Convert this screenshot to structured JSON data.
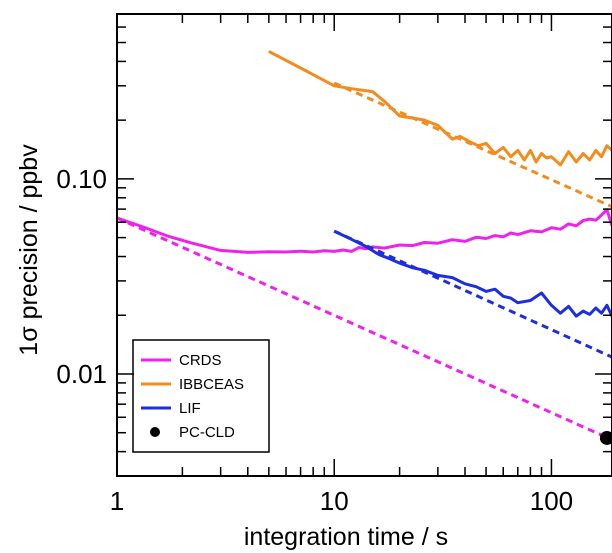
{
  "chart_data": {
    "type": "line",
    "title": "",
    "xlabel": "integration time / s",
    "ylabel": "1σ precision / ppbv",
    "xscale": "log",
    "yscale": "log",
    "xlim": [
      1,
      190
    ],
    "ylim": [
      0.003,
      0.7
    ],
    "x_ticks": [
      {
        "value": 1,
        "label": "1"
      },
      {
        "value": 10,
        "label": "10"
      },
      {
        "value": 100,
        "label": "100"
      }
    ],
    "y_ticks": [
      {
        "value": 0.01,
        "label": "0.01"
      },
      {
        "value": 0.1,
        "label": "0.10"
      }
    ],
    "grid": false,
    "legend_position": "bottom-left",
    "colors": {
      "CRDS": "#ee22ee",
      "IBBCEAS": "#f28c1e",
      "LIF": "#1c2fe0",
      "PC-CLD": "#000000"
    },
    "series": [
      {
        "name": "CRDS",
        "color": "#ee22ee",
        "measured": {
          "x": [
            1,
            1.3,
            1.7,
            2.2,
            3,
            4,
            5,
            6,
            7,
            8,
            9,
            10,
            11,
            12,
            13,
            14,
            15,
            17,
            20,
            23,
            26,
            30,
            35,
            40,
            45,
            50,
            55,
            60,
            65,
            70,
            80,
            90,
            100,
            110,
            120,
            130,
            140,
            150,
            160,
            170,
            180,
            190
          ],
          "y": [
            0.063,
            0.057,
            0.051,
            0.047,
            0.043,
            0.042,
            0.0423,
            0.0422,
            0.0426,
            0.0422,
            0.0428,
            0.0425,
            0.0432,
            0.0425,
            0.0445,
            0.0438,
            0.0448,
            0.0442,
            0.0458,
            0.0455,
            0.0472,
            0.0468,
            0.0488,
            0.0478,
            0.0502,
            0.0495,
            0.0512,
            0.0505,
            0.0528,
            0.0518,
            0.0542,
            0.0535,
            0.0562,
            0.0552,
            0.0588,
            0.0575,
            0.0612,
            0.0622,
            0.0615,
            0.0652,
            0.0695,
            0.0575
          ]
        },
        "fit": {
          "x": [
            1,
            190
          ],
          "y": [
            0.063,
            0.0046
          ]
        }
      },
      {
        "name": "IBBCEAS",
        "color": "#f28c1e",
        "measured": {
          "x": [
            5,
            7,
            10,
            12,
            15,
            17,
            20,
            23,
            26,
            30,
            35,
            38,
            42,
            46,
            50,
            55,
            60,
            65,
            70,
            75,
            80,
            85,
            90,
            95,
            100,
            110,
            120,
            130,
            140,
            150,
            160,
            170,
            180,
            190
          ],
          "y": [
            0.45,
            0.37,
            0.3,
            0.29,
            0.28,
            0.25,
            0.21,
            0.205,
            0.2,
            0.188,
            0.16,
            0.165,
            0.155,
            0.148,
            0.152,
            0.135,
            0.145,
            0.13,
            0.14,
            0.125,
            0.14,
            0.122,
            0.135,
            0.128,
            0.13,
            0.118,
            0.138,
            0.122,
            0.135,
            0.125,
            0.14,
            0.13,
            0.148,
            0.14
          ]
        },
        "fit": {
          "x": [
            10,
            190
          ],
          "y": [
            0.31,
            0.072
          ]
        }
      },
      {
        "name": "LIF",
        "color": "#1c2fe0",
        "measured": {
          "x": [
            10,
            12,
            14,
            16,
            18,
            20,
            23,
            26,
            30,
            35,
            40,
            45,
            50,
            55,
            60,
            65,
            70,
            80,
            90,
            100,
            110,
            120,
            130,
            140,
            150,
            160,
            170,
            180,
            190
          ],
          "y": [
            0.054,
            0.049,
            0.045,
            0.041,
            0.039,
            0.037,
            0.035,
            0.034,
            0.032,
            0.0312,
            0.029,
            0.028,
            0.0265,
            0.0272,
            0.025,
            0.0245,
            0.0232,
            0.0238,
            0.026,
            0.0225,
            0.0205,
            0.0222,
            0.0198,
            0.021,
            0.0202,
            0.0218,
            0.0205,
            0.0225,
            0.0198
          ]
        },
        "fit": {
          "x": [
            10,
            190
          ],
          "y": [
            0.054,
            0.0122
          ]
        }
      },
      {
        "name": "PC-CLD",
        "color": "#000000",
        "points": {
          "x": [
            180
          ],
          "y": [
            0.0047
          ]
        }
      }
    ]
  }
}
